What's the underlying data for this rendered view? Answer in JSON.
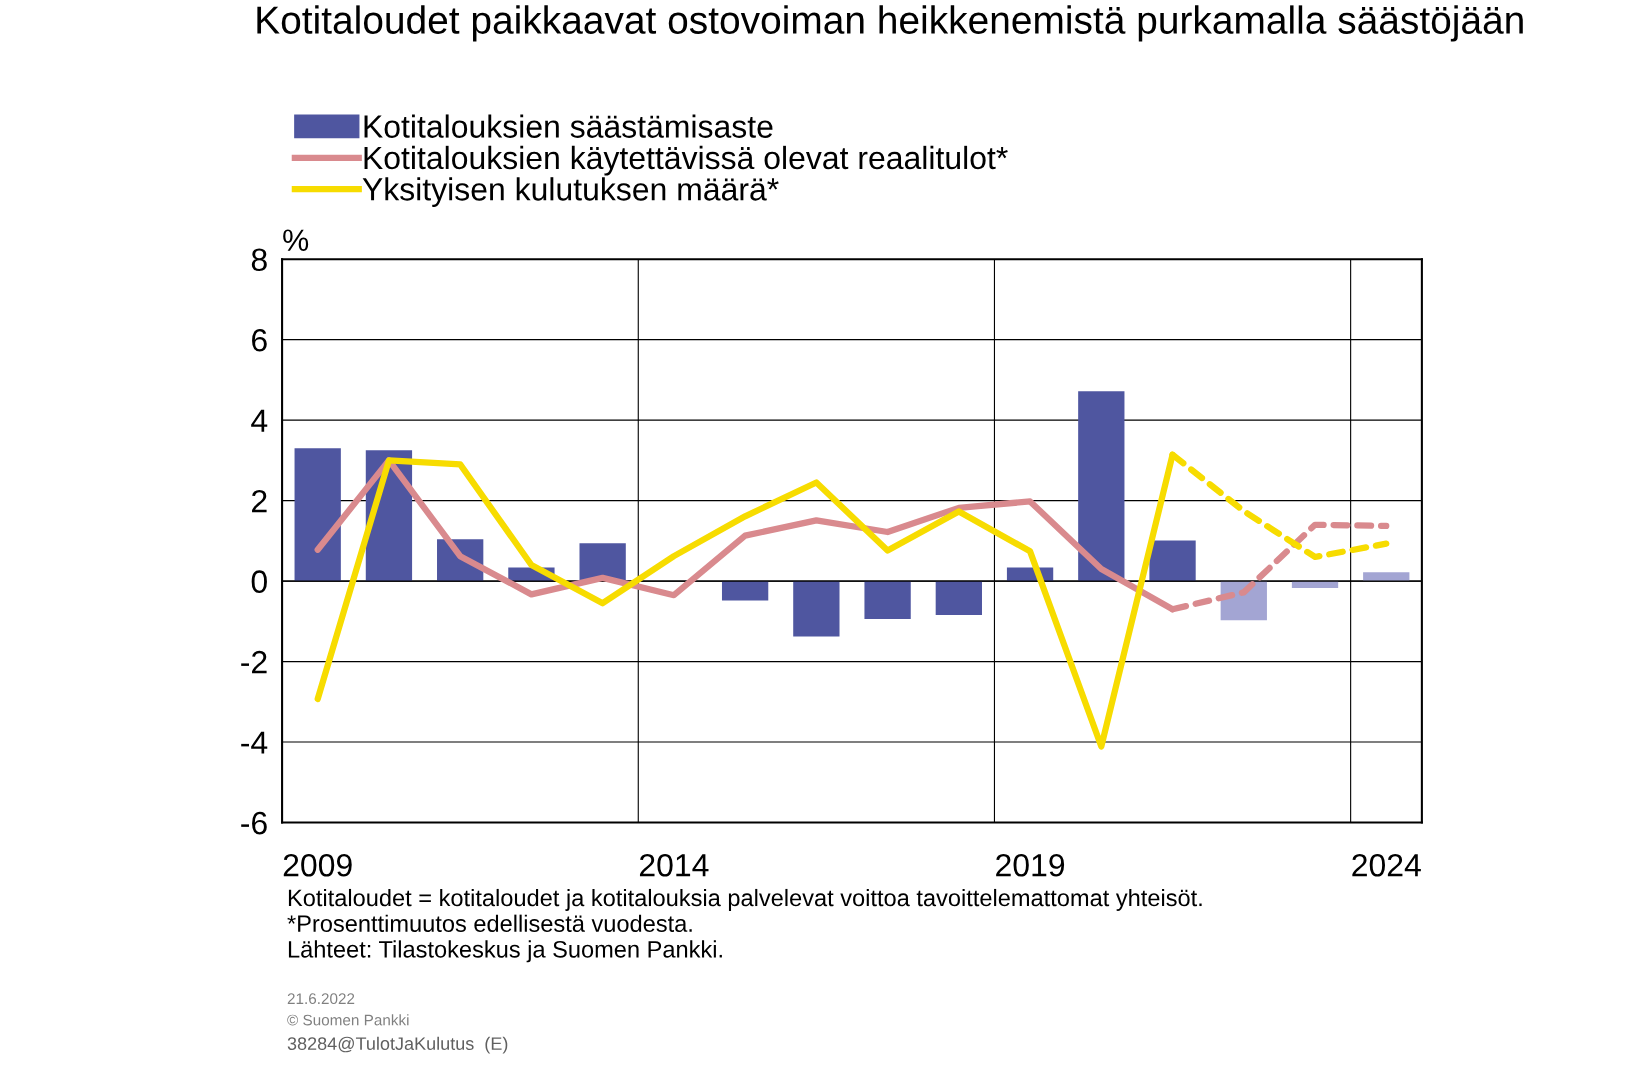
{
  "chart_data": {
    "type": "bar",
    "title": "Kotitaloudet paikkaavat ostovoiman heikkenemistä purkamalla säästöjään",
    "ylabel": "%",
    "categories": [
      "2009",
      null,
      null,
      null,
      null,
      "2014",
      null,
      null,
      null,
      null,
      "2019",
      null,
      null,
      null,
      null,
      "2024"
    ],
    "series": [
      {
        "name": "Kotitalouksien säästämisaste",
        "color": "#4f56a0",
        "colors": [
          "#4f56a0",
          "#4f56a0",
          "#4f56a0",
          "#4f56a0",
          "#4f56a0",
          "#4f56a0",
          "#4f56a0",
          "#4f56a0",
          "#4f56a0",
          "#4f56a0",
          "#4f56a0",
          "#4f56a0",
          "#4f56a0",
          "#a3a5d3",
          "#a3a5d3",
          "#a3a5d3"
        ],
        "values": [
          3.3,
          3.25,
          1.04,
          0.34,
          0.94,
          0,
          -0.48,
          -1.38,
          -0.94,
          -0.84,
          0.34,
          4.72,
          1.01,
          -0.97,
          -0.17,
          0.22
        ]
      },
      {
        "name": "Kotitalouksien käytettävissä olevat reaalitulot*",
        "type": "line",
        "line_style": "solid",
        "color": "#d98a8e",
        "values": [
          0.78,
          3.0,
          0.62,
          -0.33,
          0.08,
          -0.35,
          1.13,
          1.51,
          1.22,
          1.82,
          1.98,
          0.3,
          -0.7,
          null,
          null,
          null
        ]
      },
      {
        "name": "Yksityisen kulutuksen määrä*",
        "type": "line",
        "line_style": "solid",
        "color": "#f7dc00",
        "values": [
          -2.93,
          3.0,
          2.9,
          0.4,
          -0.55,
          0.62,
          1.61,
          2.45,
          0.76,
          1.73,
          0.74,
          -4.11,
          3.14,
          null,
          null,
          null
        ]
      },
      {
        "type": "line",
        "line_style": "dashed",
        "color": "#d98a8e",
        "values": [
          null,
          null,
          null,
          null,
          null,
          null,
          null,
          null,
          null,
          null,
          null,
          null,
          -0.7,
          -0.28,
          1.4,
          1.37
        ]
      },
      {
        "type": "line",
        "line_style": "dashed",
        "color": "#f7dc00",
        "values": [
          null,
          null,
          null,
          null,
          null,
          null,
          null,
          null,
          null,
          null,
          null,
          null,
          3.14,
          1.74,
          0.6,
          0.93
        ]
      }
    ],
    "ylim": [
      -6,
      8
    ],
    "yticks": [
      -6,
      -4,
      -2,
      0,
      2,
      4,
      6,
      8
    ],
    "grid": true,
    "legend": "top",
    "marker": "none",
    "annotations": [
      "Kotitaloudet = kotitaloudet ja kotitalouksia palvelevat voittoa tavoittelemattomat yhteisöt.",
      "*Prosenttimuutos edellisestä vuodesta.",
      "Lähteet: Tilastokeskus ja Suomen Pankki.",
      "21.6.2022",
      "© Suomen Pankki",
      "38284@TulotJaKulutus  (E)"
    ]
  }
}
